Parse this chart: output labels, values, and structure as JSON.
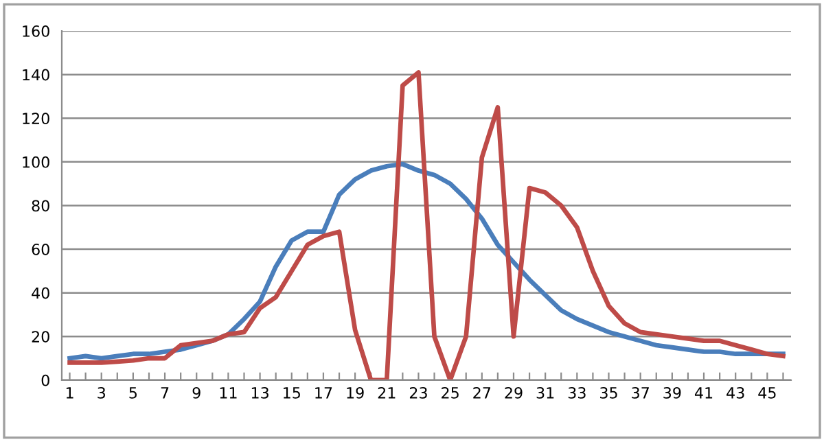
{
  "chart_data": {
    "type": "line",
    "categories": [
      "1",
      null,
      "3",
      null,
      "5",
      null,
      "7",
      null,
      "9",
      null,
      "11",
      null,
      "13",
      null,
      "15",
      null,
      "17",
      null,
      "19",
      null,
      "21",
      null,
      "23",
      null,
      "25",
      null,
      "27",
      null,
      "29",
      null,
      "31",
      null,
      "33",
      null,
      "35",
      null,
      "37",
      null,
      "39",
      null,
      "41",
      null,
      "43",
      null,
      "45",
      null
    ],
    "series": [
      {
        "color": "#4a7ebb",
        "values": [
          10,
          11,
          10,
          11,
          12,
          12,
          13,
          14,
          16,
          18,
          21,
          28,
          36,
          52,
          64,
          68,
          68,
          85,
          92,
          96,
          98,
          99,
          96,
          94,
          90,
          83,
          74,
          62,
          54,
          46,
          39,
          32,
          28,
          25,
          22,
          20,
          18,
          16,
          15,
          14,
          13,
          13,
          12,
          12,
          12,
          12
        ]
      },
      {
        "color": "#be4b48",
        "values": [
          8,
          8,
          8,
          8.5,
          9,
          10,
          10,
          16,
          17,
          18,
          21,
          22,
          33,
          38,
          50,
          62,
          66,
          68,
          23,
          0,
          0,
          135,
          141,
          20,
          0,
          20,
          102,
          125,
          20,
          88,
          86,
          80,
          70,
          50,
          34,
          26,
          22,
          21,
          20,
          19,
          18,
          18,
          16,
          14,
          12,
          11
        ]
      }
    ],
    "ylim": [
      0,
      160
    ],
    "yticks": [
      0,
      20,
      40,
      60,
      80,
      100,
      120,
      140,
      160
    ],
    "grid": "y",
    "legend": false,
    "marker": "none",
    "line_style": "solid"
  }
}
